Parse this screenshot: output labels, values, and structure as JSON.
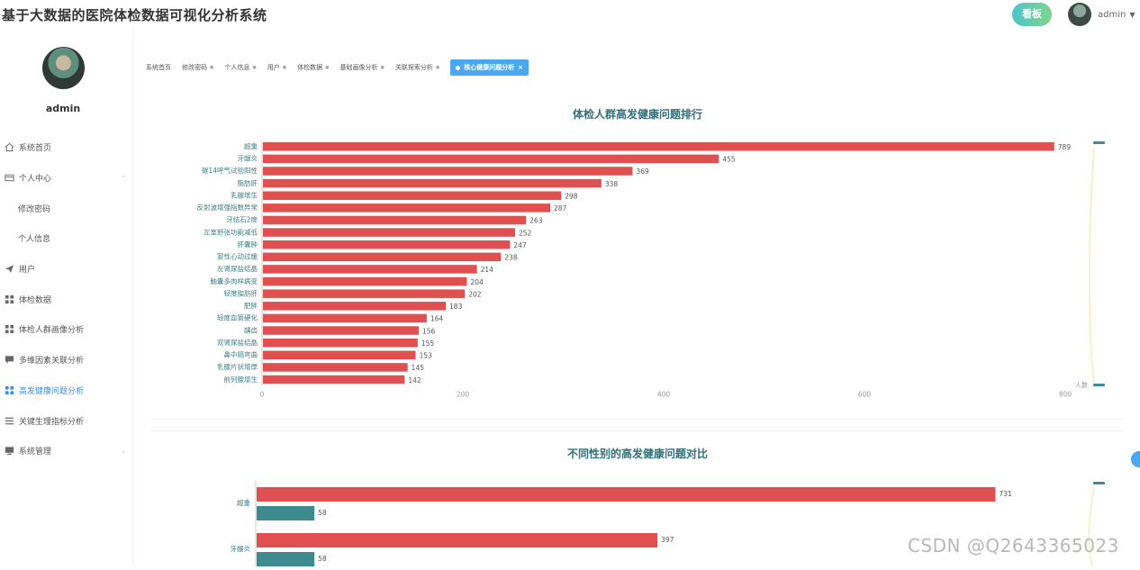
{
  "header": {
    "title": "基于大数据的医院体检数据可视化分析系统",
    "board_btn": "看板",
    "username": "admin"
  },
  "sidebar": {
    "username": "admin",
    "items": [
      {
        "label": "系统首页",
        "icon": "home-icon"
      },
      {
        "label": "个人中心",
        "icon": "card-icon",
        "expand": true
      },
      {
        "label": "修改密码",
        "sub": true
      },
      {
        "label": "个人信息",
        "sub": true
      },
      {
        "label": "用户",
        "icon": "send-icon"
      },
      {
        "label": "体检数据",
        "icon": "grid-icon"
      },
      {
        "label": "体检人群画像分析",
        "icon": "grid-icon"
      },
      {
        "label": "多维因素关联分析",
        "icon": "chat-icon"
      },
      {
        "label": "高发健康问题分析",
        "icon": "grid-icon",
        "active": true
      },
      {
        "label": "关键生理指标分析",
        "icon": "list-icon"
      },
      {
        "label": "系统管理",
        "icon": "monitor-icon",
        "expand": true
      }
    ]
  },
  "tabs": [
    {
      "label": "系统首页"
    },
    {
      "label": "修改密码"
    },
    {
      "label": "个人信息"
    },
    {
      "label": "用户"
    },
    {
      "label": "体检数据"
    },
    {
      "label": "基础画像分析"
    },
    {
      "label": "关联探索分析"
    },
    {
      "label": "核心健康问题分析",
      "active": true
    }
  ],
  "colors": {
    "bar": "#e05050",
    "bar2": "#3d8a8f",
    "accent": "#4aa8f0",
    "title": "#2f6f79"
  },
  "chart_data": [
    {
      "type": "bar",
      "orientation": "horizontal",
      "title": "体检人群高发健康问题排行",
      "categories": [
        "超重",
        "牙龈炎",
        "碳14呼气试验阳性",
        "脂肪肝",
        "乳腺增生",
        "反射波增强指数异常",
        "牙结石2度",
        "左室舒张功能减低",
        "肝囊肿",
        "窦性心动过缓",
        "左肾尿盐结晶",
        "脑囊多肉样病变",
        "轻度脂肪肝",
        "肥胖",
        "轻度血管硬化",
        "龋齿",
        "双肾尿盐结晶",
        "鼻中隔弯曲",
        "乳腺片状增厚",
        "前列腺增生"
      ],
      "values": [
        789,
        455,
        369,
        338,
        298,
        287,
        263,
        252,
        247,
        238,
        214,
        204,
        202,
        183,
        164,
        156,
        155,
        153,
        145,
        142
      ],
      "xlim": [
        0,
        800
      ],
      "xticks": [
        0,
        200,
        400,
        600,
        800
      ],
      "legend": "人数"
    },
    {
      "type": "bar",
      "orientation": "horizontal",
      "title": "不同性别的高发健康问题对比",
      "categories": [
        "超重",
        "牙龈炎"
      ],
      "series": [
        {
          "name": "series-1",
          "values": [
            731,
            397
          ]
        },
        {
          "name": "series-2",
          "values": [
            58,
            58
          ]
        }
      ],
      "xlim": [
        0,
        800
      ]
    }
  ],
  "watermark": "CSDN @Q2643365023"
}
